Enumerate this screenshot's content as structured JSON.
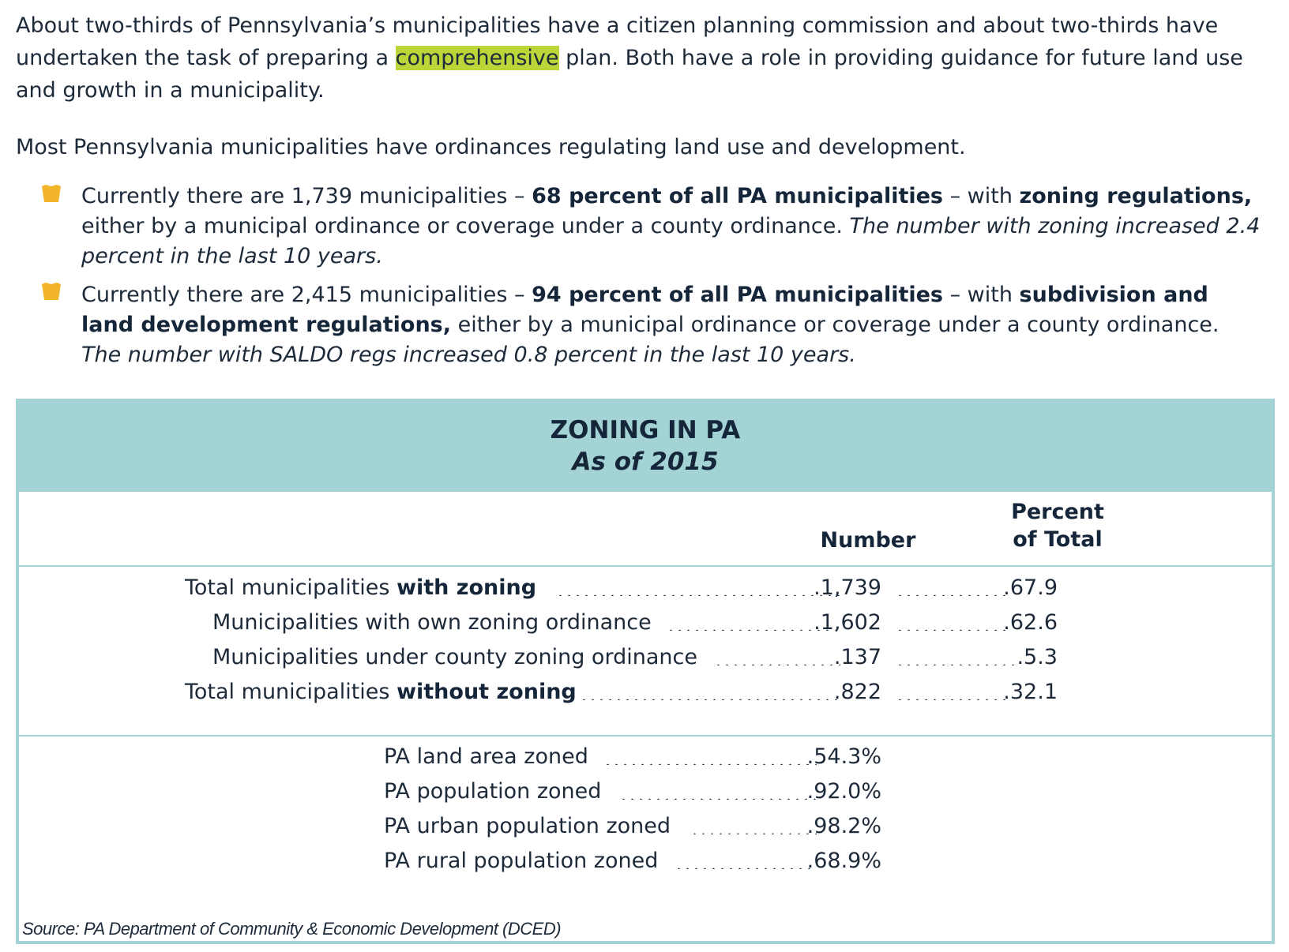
{
  "intro": {
    "p1_before": "About two-thirds of Pennsylvania’s municipalities have a citizen planning commission and about two-thirds have undertaken the task of preparing a ",
    "p1_highlight": "comprehensive",
    "p1_after": " plan. Both have a role in providing guidance for future land use and growth in a municipality.",
    "p2": "Most Pennsylvania municipalities have ordinances regulating land use and development."
  },
  "bullets": [
    {
      "icon": "keystone-icon",
      "t1": "Currently there are 1,739 municipalities – ",
      "b1": "68 percent of all PA municipalities",
      "t2": " – with ",
      "b2": "zoning regulations,",
      "t3": " either by a municipal ordinance or coverage under a county ordinance. ",
      "i1": "The number with zoning increased 2.4 percent in the last 10 years."
    },
    {
      "icon": "keystone-icon",
      "t1": "Currently there are 2,415 municipalities – ",
      "b1": "94 percent of all PA municipalities",
      "t2": " – with ",
      "b2": "subdivision and land development regulations,",
      "t3": " either by a municipal ordinance or coverage under a county ordinance.",
      "i1": "The number with SALDO regs increased 0.8 percent in the last 10 years."
    }
  ],
  "table": {
    "title": "ZONING IN PA",
    "subtitle": "As of 2015",
    "col_number": "Number",
    "col_percent_line1": "Percent",
    "col_percent_line2": "of Total",
    "rows": [
      {
        "pre": "Total municipalities ",
        "bold": "with zoning",
        "number": ".1,739",
        "percent": ".67.9"
      },
      {
        "pre": "Municipalities with own zoning ordinance",
        "bold": "",
        "number": ".1,602",
        "percent": ".62.6"
      },
      {
        "pre": "Municipalities under county zoning ordinance",
        "bold": "",
        "number": ".137",
        "percent": ".5.3"
      },
      {
        "pre": "Total municipalities ",
        "bold": "without zoning",
        "number": ".822",
        "percent": ".32.1"
      }
    ],
    "stats": [
      {
        "label": "PA land area zoned",
        "value": ".54.3%"
      },
      {
        "label": "PA population zoned",
        "value": ".92.0%"
      },
      {
        "label": "PA urban population zoned",
        "value": ".98.2%"
      },
      {
        "label": "PA rural population zoned",
        "value": ".68.9%"
      }
    ],
    "source": "Source: PA Department of Community & Economic Development (DCED)"
  },
  "colors": {
    "text": "#1d2a3a",
    "teal": "#a3d3d4",
    "highlight": "#bcd63a",
    "bullet": "#f2b52b"
  }
}
